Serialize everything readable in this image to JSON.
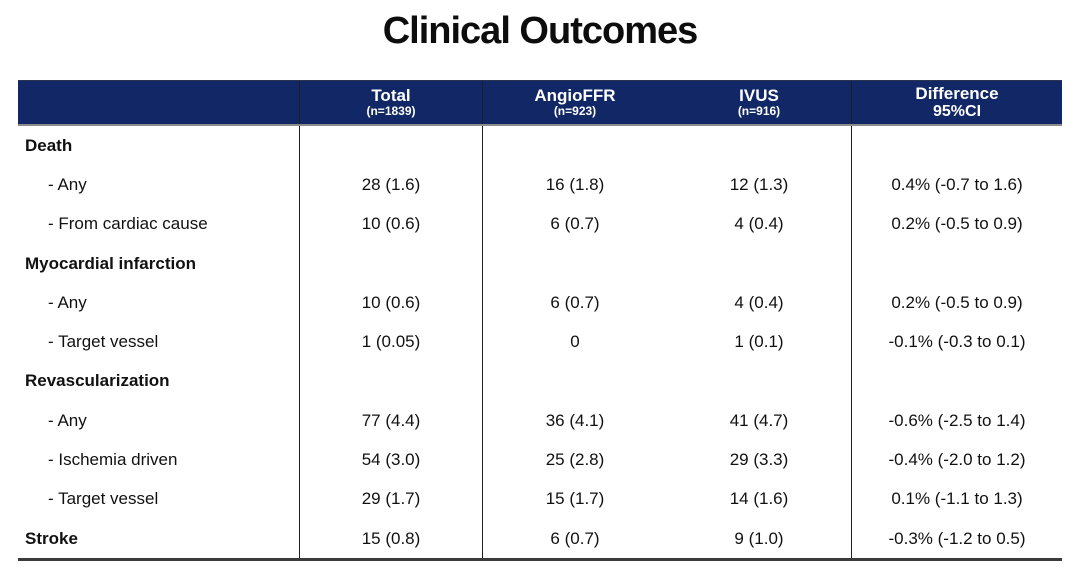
{
  "slide": {
    "title": "Clinical Outcomes"
  },
  "colors": {
    "header_bg": "#122765",
    "header_text": "#ffffff",
    "body_text": "#111111",
    "divider": "#1f1f1f",
    "header_underline": "#8c8c8c",
    "bottom_border": "#3a3a3a"
  },
  "table": {
    "header": {
      "total": {
        "label": "Total",
        "sub": "(n=1839)"
      },
      "angioffr": {
        "label": "AngioFFR",
        "sub": "(n=923)"
      },
      "ivus": {
        "label": "IVUS",
        "sub": "(n=916)"
      },
      "difference": {
        "label": "Difference",
        "sub": "95%CI"
      }
    },
    "rows": [
      {
        "label": "Death",
        "total": "",
        "angioffr": "",
        "ivus": "",
        "difference": ""
      },
      {
        "label": "- Any",
        "total": "28 (1.6)",
        "angioffr": "16 (1.8)",
        "ivus": "12 (1.3)",
        "difference": "0.4% (-0.7 to 1.6)"
      },
      {
        "label": "- From cardiac cause",
        "total": "10 (0.6)",
        "angioffr": "6 (0.7)",
        "ivus": "4 (0.4)",
        "difference": "0.2% (-0.5 to 0.9)"
      },
      {
        "label": "Myocardial infarction",
        "total": "",
        "angioffr": "",
        "ivus": "",
        "difference": ""
      },
      {
        "label": "- Any",
        "total": "10 (0.6)",
        "angioffr": "6 (0.7)",
        "ivus": "4 (0.4)",
        "difference": "0.2% (-0.5 to 0.9)"
      },
      {
        "label": "- Target vessel",
        "total": "1 (0.05)",
        "angioffr": "0",
        "ivus": "1 (0.1)",
        "difference": "-0.1% (-0.3 to 0.1)"
      },
      {
        "label": "Revascularization",
        "total": "",
        "angioffr": "",
        "ivus": "",
        "difference": ""
      },
      {
        "label": "- Any",
        "total": "77 (4.4)",
        "angioffr": "36 (4.1)",
        "ivus": "41 (4.7)",
        "difference": "-0.6% (-2.5 to 1.4)"
      },
      {
        "label": "- Ischemia driven",
        "total": "54 (3.0)",
        "angioffr": "25 (2.8)",
        "ivus": "29 (3.3)",
        "difference": "-0.4% (-2.0 to 1.2)"
      },
      {
        "label": "- Target vessel",
        "total": "29 (1.7)",
        "angioffr": "15 (1.7)",
        "ivus": "14 (1.6)",
        "difference": "0.1% (-1.1 to 1.3)"
      },
      {
        "label": "Stroke",
        "total": "15 (0.8)",
        "angioffr": "6 (0.7)",
        "ivus": "9 (1.0)",
        "difference": "-0.3% (-1.2 to 0.5)"
      }
    ]
  }
}
